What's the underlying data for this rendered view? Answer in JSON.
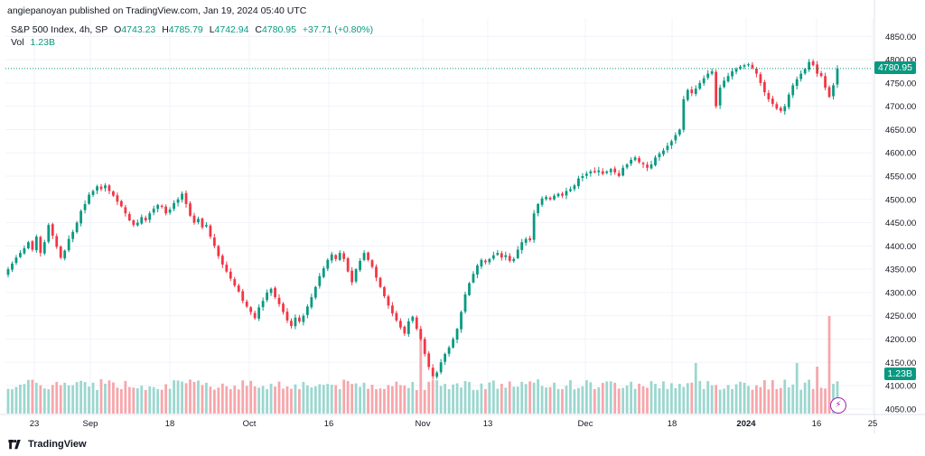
{
  "caption": "angiepanoyan published on TradingView.com, Jan 19, 2024 05:40 UTC",
  "brand": "TradingView",
  "legend": {
    "symbol": "S&P 500 Index, 4h, SP",
    "open_label": "O",
    "open": "4743.23",
    "high_label": "H",
    "high": "4785.79",
    "low_label": "L",
    "low": "4742.94",
    "close_label": "C",
    "close": "4780.95",
    "change": "+37.71 (+0.80%)",
    "vol_label": "Vol",
    "vol": "1.23B"
  },
  "badges": {
    "last_price": "4780.95",
    "last_volume": "1.23B"
  },
  "colors": {
    "up": "#089981",
    "down": "#f23645",
    "vol_up": "#9bd7cf",
    "vol_down": "#f7a6ab",
    "grid": "#f0f3fa",
    "axis_text": "#131722",
    "price_line": "#089981"
  },
  "chart_data": {
    "type": "candlestick",
    "title": "S&P 500 Index, 4h, SP",
    "y_ticks": [
      "4850.00",
      "4800.00",
      "4750.00",
      "4700.00",
      "4650.00",
      "4600.00",
      "4550.00",
      "4500.00",
      "4450.00",
      "4400.00",
      "4350.00",
      "4300.00",
      "4250.00",
      "4200.00",
      "4150.00",
      "4100.00",
      "4050.00"
    ],
    "ylim": [
      4040,
      4870
    ],
    "x_ticks": [
      "23",
      "Sep",
      "18",
      "Oct",
      "16",
      "Nov",
      "13",
      "Dec",
      "18",
      "2024",
      "16",
      "25"
    ],
    "last_price": 4780.95,
    "closes": [
      4350,
      4362,
      4375,
      4385,
      4395,
      4408,
      4392,
      4420,
      4385,
      4408,
      4445,
      4422,
      4398,
      4375,
      4390,
      4415,
      4430,
      4450,
      4475,
      4490,
      4510,
      4518,
      4528,
      4522,
      4530,
      4518,
      4508,
      4495,
      4485,
      4470,
      4455,
      4445,
      4450,
      4462,
      4455,
      4470,
      4480,
      4488,
      4484,
      4470,
      4478,
      4492,
      4500,
      4512,
      4490,
      4465,
      4450,
      4458,
      4440,
      4445,
      4420,
      4400,
      4378,
      4360,
      4345,
      4330,
      4315,
      4302,
      4282,
      4270,
      4258,
      4245,
      4268,
      4282,
      4300,
      4308,
      4290,
      4275,
      4258,
      4240,
      4228,
      4246,
      4238,
      4250,
      4270,
      4290,
      4312,
      4335,
      4352,
      4370,
      4382,
      4372,
      4385,
      4372,
      4345,
      4322,
      4350,
      4368,
      4385,
      4370,
      4355,
      4332,
      4312,
      4292,
      4272,
      4255,
      4240,
      4225,
      4212,
      4238,
      4248,
      4222,
      4200,
      4168,
      4140,
      4120,
      4128,
      4150,
      4168,
      4182,
      4200,
      4222,
      4258,
      4296,
      4320,
      4340,
      4358,
      4370,
      4365,
      4372,
      4380,
      4385,
      4375,
      4380,
      4368,
      4372,
      4392,
      4408,
      4415,
      4412,
      4470,
      4490,
      4502,
      4505,
      4500,
      4508,
      4512,
      4508,
      4518,
      4522,
      4530,
      4545,
      4550,
      4555,
      4560,
      4558,
      4562,
      4555,
      4560,
      4565,
      4558,
      4550,
      4568,
      4575,
      4585,
      4590,
      4580,
      4575,
      4568,
      4575,
      4590,
      4598,
      4605,
      4615,
      4625,
      4638,
      4650,
      4715,
      4735,
      4728,
      4738,
      4750,
      4760,
      4770,
      4775,
      4700,
      4740,
      4755,
      4765,
      4775,
      4780,
      4785,
      4788,
      4790,
      4782,
      4770,
      4750,
      4730,
      4715,
      4705,
      4695,
      4690,
      4700,
      4725,
      4745,
      4758,
      4770,
      4780,
      4795,
      4788,
      4770,
      4765,
      4740,
      4720,
      4745,
      4781
    ]
  }
}
